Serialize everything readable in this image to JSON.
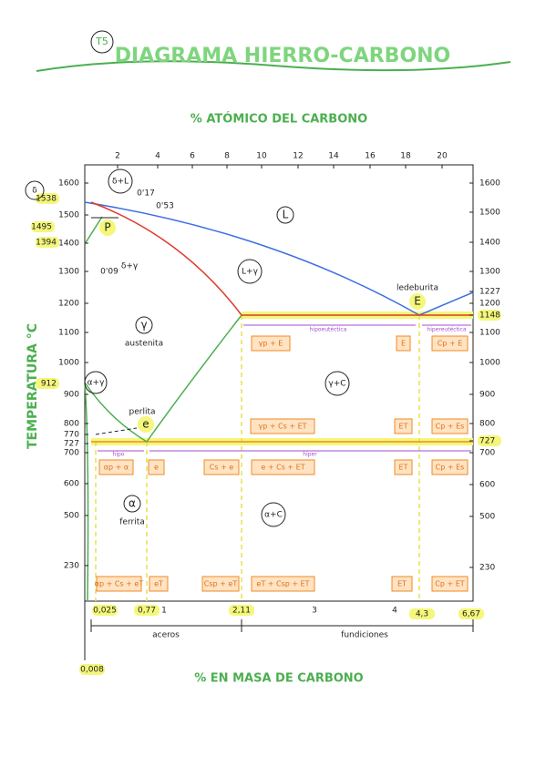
{
  "header": {
    "badge": "T5",
    "title": "DIAGRAMA HIERRO-CARBONO"
  },
  "top_axis": {
    "title": "% ATÓMICO DEL CARBONO",
    "ticks": [
      "2",
      "4",
      "6",
      "8",
      "10",
      "12",
      "14",
      "16",
      "18",
      "20"
    ]
  },
  "left_axis": {
    "title": "TEMPERATURA °C",
    "ticks": [
      "1600",
      "1538",
      "1500",
      "1495",
      "1400",
      "1394",
      "1300",
      "1200",
      "1100",
      "1000",
      "912",
      "900",
      "800",
      "770",
      "727",
      "700",
      "600",
      "500",
      "230"
    ]
  },
  "right_axis": {
    "ticks": [
      "1600",
      "1500",
      "1400",
      "1300",
      "1227",
      "1200",
      "1148",
      "1100",
      "1000",
      "900",
      "800",
      "727",
      "700",
      "600",
      "500",
      "230"
    ]
  },
  "bottom_axis": {
    "title": "% EN MASA DE CARBONO",
    "ticks": [
      "0,008",
      "0,025",
      "0,77",
      "1",
      "2,11",
      "3",
      "4",
      "4,3",
      "6,67"
    ],
    "ranges": [
      "aceros",
      "fundiciones"
    ]
  },
  "regions": [
    "δ",
    "δ+L",
    "0'17",
    "0'53",
    "P",
    "δ+γ",
    "0'09",
    "L",
    "L+γ",
    "γ",
    "austenita",
    "α+γ",
    "perlita",
    "e",
    "γ+C",
    "ledeburita",
    "E",
    "α+C",
    "α",
    "ferrita"
  ],
  "zones": [
    "hipoeutéctica",
    "hipereutéctica",
    "hipo",
    "hiper"
  ],
  "boxes": [
    "γp + E",
    "E",
    "Cp + E",
    "γp + Cs + ET",
    "ET",
    "Cp + Es",
    "αp + α",
    "e",
    "Cs + e",
    "e + Cs + ET",
    "ET",
    "Cp + Es",
    "αp + Cs + eT",
    "eT",
    "Csp + eT",
    "eT + Csp + ET",
    "ET",
    "Cp + ET"
  ]
}
